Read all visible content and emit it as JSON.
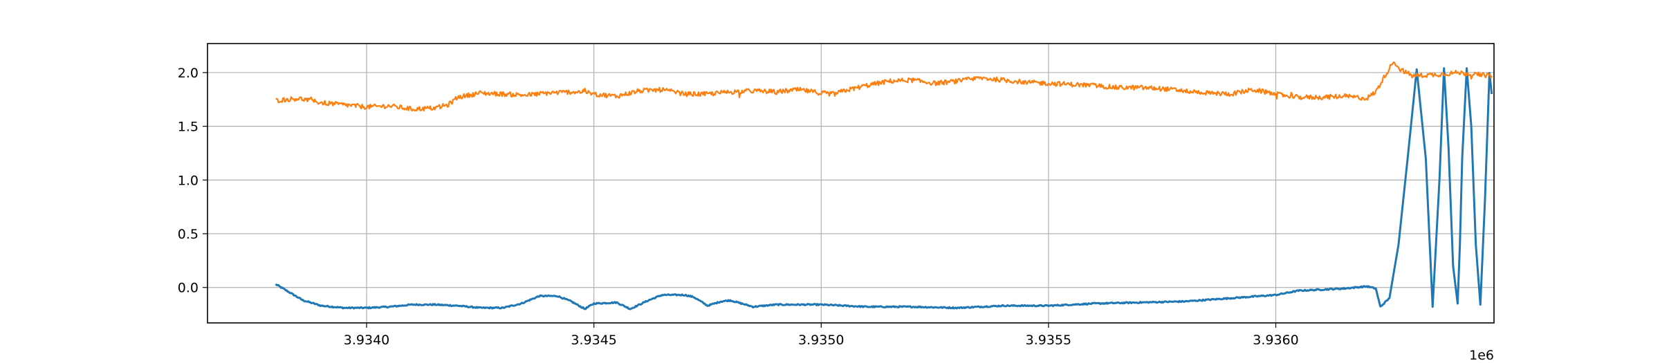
{
  "chart_data": {
    "type": "line",
    "title": "",
    "xlabel": "",
    "ylabel": "",
    "x_offset_text": "1e6",
    "xlim": [
      3933650,
      3936480
    ],
    "ylim": [
      -0.33,
      2.27
    ],
    "grid": true,
    "x_ticks": [
      3934000,
      3934500,
      3935000,
      3935500,
      3936000
    ],
    "x_tick_labels": [
      "3.9340",
      "3.9345",
      "3.9350",
      "3.9355",
      "3.9360"
    ],
    "y_ticks": [
      0.0,
      0.5,
      1.0,
      1.5,
      2.0
    ],
    "y_tick_labels": [
      "0.0",
      "0.5",
      "1.0",
      "1.5",
      "2.0"
    ],
    "colors": {
      "series_1": "#1f77b4",
      "series_2": "#ff7f0e",
      "grid": "#b0b0b0",
      "axes": "#000000"
    },
    "series": [
      {
        "color": "#1f77b4",
        "x": [
          3933800,
          3933820,
          3933860,
          3933900,
          3933950,
          3934000,
          3934050,
          3934100,
          3934150,
          3934200,
          3934250,
          3934300,
          3934340,
          3934380,
          3934420,
          3934450,
          3934480,
          3934500,
          3934550,
          3934580,
          3934620,
          3934650,
          3934700,
          3934720,
          3934750,
          3934780,
          3934800,
          3934850,
          3934900,
          3935000,
          3935100,
          3935200,
          3935300,
          3935400,
          3935500,
          3935600,
          3935700,
          3935800,
          3935900,
          3936000,
          3936050,
          3936100,
          3936150,
          3936200,
          3936220,
          3936230,
          3936250,
          3936270,
          3936290,
          3936310,
          3936330,
          3936345,
          3936360,
          3936370,
          3936380,
          3936390,
          3936400,
          3936405,
          3936410,
          3936420,
          3936430,
          3936440,
          3936450,
          3936460,
          3936470,
          3936475
        ],
        "values": [
          0.03,
          -0.02,
          -0.12,
          -0.17,
          -0.19,
          -0.19,
          -0.18,
          -0.16,
          -0.16,
          -0.17,
          -0.19,
          -0.19,
          -0.15,
          -0.08,
          -0.08,
          -0.13,
          -0.2,
          -0.15,
          -0.14,
          -0.2,
          -0.12,
          -0.07,
          -0.07,
          -0.09,
          -0.17,
          -0.13,
          -0.12,
          -0.18,
          -0.16,
          -0.16,
          -0.18,
          -0.18,
          -0.19,
          -0.17,
          -0.17,
          -0.15,
          -0.14,
          -0.13,
          -0.1,
          -0.07,
          -0.03,
          -0.02,
          -0.01,
          0.01,
          -0.01,
          -0.18,
          -0.1,
          0.4,
          1.2,
          2.03,
          1.2,
          -0.18,
          1.0,
          2.04,
          1.3,
          0.2,
          -0.15,
          0.4,
          1.2,
          2.04,
          1.5,
          0.4,
          -0.16,
          0.8,
          2.0,
          1.8
        ]
      },
      {
        "color": "#ff7f0e",
        "x": [
          3933800,
          3933850,
          3933900,
          3933950,
          3934000,
          3934050,
          3934100,
          3934150,
          3934180,
          3934200,
          3934250,
          3934300,
          3934350,
          3934400,
          3934450,
          3934480,
          3934500,
          3934550,
          3934600,
          3934650,
          3934700,
          3934750,
          3934800,
          3934850,
          3934900,
          3934950,
          3935000,
          3935030,
          3935050,
          3935100,
          3935150,
          3935200,
          3935250,
          3935300,
          3935350,
          3935400,
          3935450,
          3935500,
          3935550,
          3935600,
          3935650,
          3935700,
          3935750,
          3935800,
          3935850,
          3935900,
          3935950,
          3936000,
          3936050,
          3936100,
          3936150,
          3936200,
          3936220,
          3936240,
          3936260,
          3936270,
          3936300,
          3936350,
          3936400,
          3936450,
          3936475
        ],
        "values": [
          1.74,
          1.76,
          1.72,
          1.7,
          1.68,
          1.69,
          1.66,
          1.67,
          1.7,
          1.77,
          1.81,
          1.8,
          1.79,
          1.81,
          1.82,
          1.82,
          1.8,
          1.78,
          1.83,
          1.84,
          1.8,
          1.8,
          1.82,
          1.83,
          1.82,
          1.84,
          1.81,
          1.8,
          1.83,
          1.88,
          1.92,
          1.93,
          1.9,
          1.92,
          1.95,
          1.93,
          1.91,
          1.9,
          1.89,
          1.88,
          1.86,
          1.86,
          1.85,
          1.83,
          1.81,
          1.8,
          1.84,
          1.8,
          1.77,
          1.77,
          1.78,
          1.76,
          1.82,
          1.97,
          2.11,
          2.04,
          1.97,
          1.98,
          2.0,
          1.98,
          1.97
        ]
      }
    ]
  }
}
